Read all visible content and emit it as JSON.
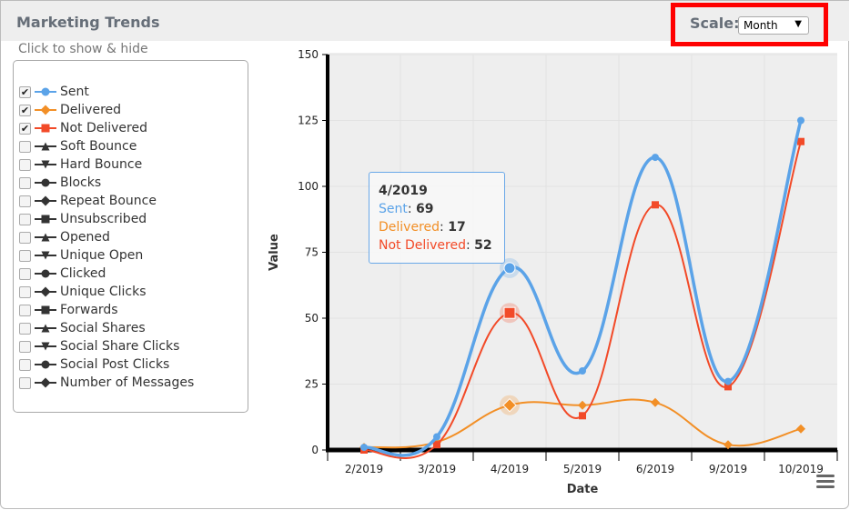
{
  "header": {
    "title": "Marketing Trends",
    "scale_label": "Scale:",
    "scale_value": "Month"
  },
  "legend": {
    "hint": "Click to show & hide",
    "items": [
      {
        "label": "Sent",
        "checked": true,
        "color": "#5ba3e8",
        "marker": "circle"
      },
      {
        "label": "Delivered",
        "checked": true,
        "color": "#f28f26",
        "marker": "diamond"
      },
      {
        "label": "Not Delivered",
        "checked": true,
        "color": "#f24a28",
        "marker": "square"
      },
      {
        "label": "Soft Bounce",
        "checked": false,
        "color": "#333",
        "marker": "triangle"
      },
      {
        "label": "Hard Bounce",
        "checked": false,
        "color": "#333",
        "marker": "triangle-down"
      },
      {
        "label": "Blocks",
        "checked": false,
        "color": "#333",
        "marker": "circle"
      },
      {
        "label": "Repeat Bounce",
        "checked": false,
        "color": "#333",
        "marker": "diamond"
      },
      {
        "label": "Unsubscribed",
        "checked": false,
        "color": "#333",
        "marker": "square"
      },
      {
        "label": "Opened",
        "checked": false,
        "color": "#333",
        "marker": "triangle"
      },
      {
        "label": "Unique Open",
        "checked": false,
        "color": "#333",
        "marker": "triangle-down"
      },
      {
        "label": "Clicked",
        "checked": false,
        "color": "#333",
        "marker": "circle"
      },
      {
        "label": "Unique Clicks",
        "checked": false,
        "color": "#333",
        "marker": "diamond"
      },
      {
        "label": "Forwards",
        "checked": false,
        "color": "#333",
        "marker": "square"
      },
      {
        "label": "Social Shares",
        "checked": false,
        "color": "#333",
        "marker": "triangle"
      },
      {
        "label": "Social Share Clicks",
        "checked": false,
        "color": "#333",
        "marker": "triangle-down"
      },
      {
        "label": "Social Post Clicks",
        "checked": false,
        "color": "#333",
        "marker": "circle"
      },
      {
        "label": "Number of Messages",
        "checked": false,
        "color": "#333",
        "marker": "diamond"
      }
    ]
  },
  "tooltip": {
    "title": "4/2019",
    "rows": [
      {
        "label": "Sent",
        "value": "69",
        "color": "#5ba3e8"
      },
      {
        "label": "Delivered",
        "value": "17",
        "color": "#f28f26"
      },
      {
        "label": "Not Delivered",
        "value": "52",
        "color": "#f24a28"
      }
    ]
  },
  "chart_data": {
    "type": "line",
    "xlabel": "Date",
    "ylabel": "Value",
    "ylim": [
      0,
      150
    ],
    "yticks": [
      0,
      25,
      50,
      75,
      100,
      125,
      150
    ],
    "categories": [
      "2/2019",
      "3/2019",
      "4/2019",
      "5/2019",
      "6/2019",
      "9/2019",
      "10/2019"
    ],
    "series": [
      {
        "name": "Sent",
        "color": "#5ba3e8",
        "marker": "circle",
        "values": [
          1,
          5,
          69,
          30,
          111,
          26,
          125
        ]
      },
      {
        "name": "Delivered",
        "color": "#f28f26",
        "marker": "diamond",
        "values": [
          1,
          3,
          17,
          17,
          18,
          2,
          8
        ]
      },
      {
        "name": "Not Delivered",
        "color": "#f24a28",
        "marker": "square",
        "values": [
          0,
          2,
          52,
          13,
          93,
          24,
          117
        ]
      }
    ],
    "highlight_index": 2
  }
}
